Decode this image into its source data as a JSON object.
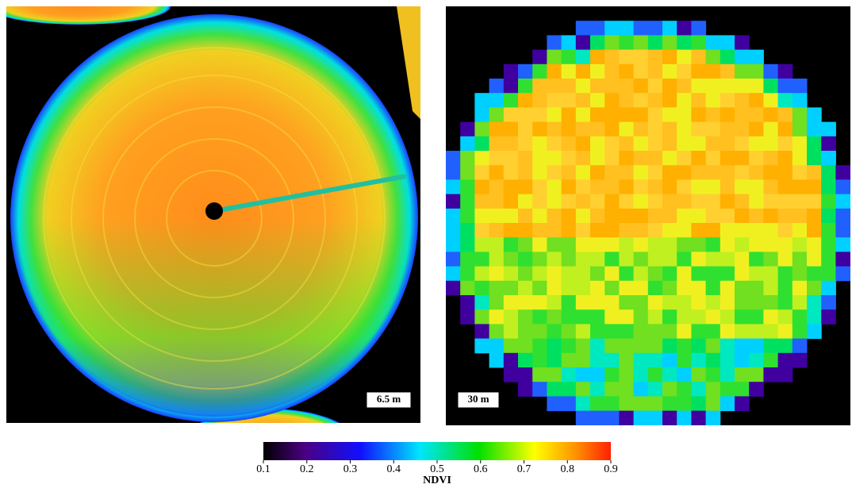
{
  "panels": [
    {
      "label": "6.5 m"
    },
    {
      "label": "30 m"
    }
  ],
  "colorbar": {
    "label": "NDVI",
    "lim": [
      0.1,
      0.9
    ],
    "ticks": [
      0.1,
      0.2,
      0.3,
      0.4,
      0.5,
      0.6,
      0.7,
      0.8,
      0.9
    ]
  }
}
